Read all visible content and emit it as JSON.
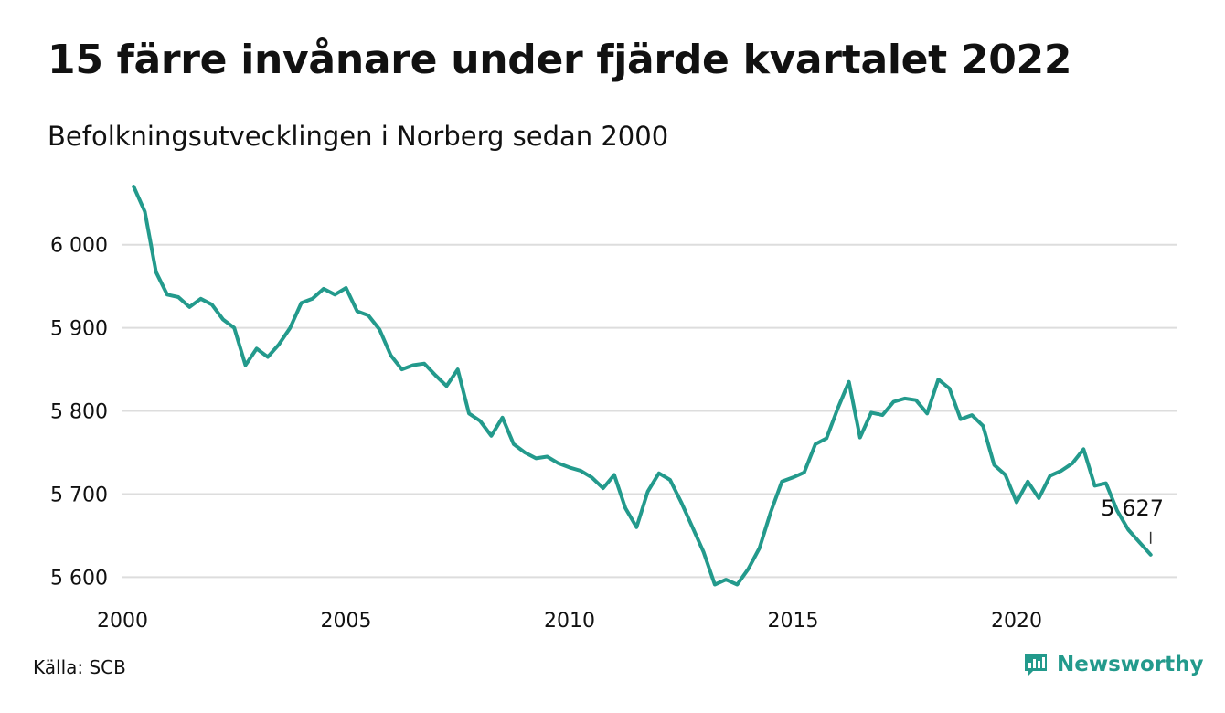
{
  "title": "15 färre invånare under fjärde kvartalet 2022",
  "subtitle": "Befolkningsutvecklingen i Norberg sedan 2000",
  "source": "Källa: SCB",
  "brand": {
    "name": "Newsworthy",
    "icon": "newsworthy-logo-icon",
    "color": "#239a8c"
  },
  "colors": {
    "line": "#239a8c",
    "grid": "#dddddd",
    "text": "#111111"
  },
  "chart_data": {
    "type": "line",
    "title": "15 färre invånare under fjärde kvartalet 2022",
    "subtitle": "Befolkningsutvecklingen i Norberg sedan 2000",
    "xlabel": "",
    "ylabel": "",
    "x_ticks": [
      2000,
      2005,
      2010,
      2015,
      2020
    ],
    "x_tick_labels": [
      "2000",
      "2005",
      "2010",
      "2015",
      "2020"
    ],
    "y_ticks": [
      5600,
      5700,
      5800,
      5900,
      6000
    ],
    "y_tick_labels": [
      "5 600",
      "5 700",
      "5 800",
      "5 900",
      "6 000"
    ],
    "xlim": [
      2000.0,
      2023.6
    ],
    "ylim": [
      5585,
      6080
    ],
    "grid": "horizontal",
    "series": [
      {
        "x": [
          2000.25,
          2000.5,
          2000.75,
          2001.0,
          2001.25,
          2001.5,
          2001.75,
          2002.0,
          2002.25,
          2002.5,
          2002.75,
          2003.0,
          2003.25,
          2003.5,
          2003.75,
          2004.0,
          2004.25,
          2004.5,
          2004.75,
          2005.0,
          2005.25,
          2005.5,
          2005.75,
          2006.0,
          2006.25,
          2006.5,
          2006.75,
          2007.0,
          2007.25,
          2007.5,
          2007.75,
          2008.0,
          2008.25,
          2008.5,
          2008.75,
          2009.0,
          2009.25,
          2009.5,
          2009.75,
          2010.0,
          2010.25,
          2010.5,
          2010.75,
          2011.0,
          2011.25,
          2011.5,
          2011.75,
          2012.0,
          2012.25,
          2012.5,
          2012.75,
          2013.0,
          2013.25,
          2013.5,
          2013.75,
          2014.0,
          2014.25,
          2014.5,
          2014.75,
          2015.0,
          2015.25,
          2015.5,
          2015.75,
          2016.0,
          2016.25,
          2016.5,
          2016.75,
          2017.0,
          2017.25,
          2017.5,
          2017.75,
          2018.0,
          2018.25,
          2018.5,
          2018.75,
          2019.0,
          2019.25,
          2019.5,
          2019.75,
          2020.0,
          2020.25,
          2020.5,
          2020.75,
          2021.0,
          2021.25,
          2021.5,
          2021.75,
          2022.0,
          2022.25,
          2022.5,
          2022.75,
          2023.0
        ],
        "values": [
          6070,
          6040,
          5967,
          5940,
          5937,
          5925,
          5935,
          5928,
          5910,
          5900,
          5855,
          5875,
          5865,
          5880,
          5900,
          5930,
          5935,
          5947,
          5940,
          5948,
          5920,
          5915,
          5898,
          5867,
          5850,
          5855,
          5857,
          5843,
          5830,
          5850,
          5797,
          5788,
          5770,
          5792,
          5760,
          5750,
          5743,
          5745,
          5737,
          5732,
          5728,
          5720,
          5707,
          5723,
          5683,
          5660,
          5703,
          5725,
          5717,
          5690,
          5660,
          5630,
          5591,
          5597,
          5591,
          5610,
          5635,
          5678,
          5715,
          5720,
          5726,
          5760,
          5767,
          5803,
          5835,
          5768,
          5798,
          5795,
          5811,
          5815,
          5813,
          5797,
          5838,
          5827,
          5790,
          5795,
          5782,
          5735,
          5723,
          5690,
          5715,
          5695,
          5722,
          5728,
          5737,
          5754,
          5710,
          5713,
          5680,
          5657,
          5642,
          5627
        ]
      }
    ],
    "annotations": [
      {
        "x": 2023.0,
        "y": 5627,
        "text": "5 627"
      }
    ]
  }
}
